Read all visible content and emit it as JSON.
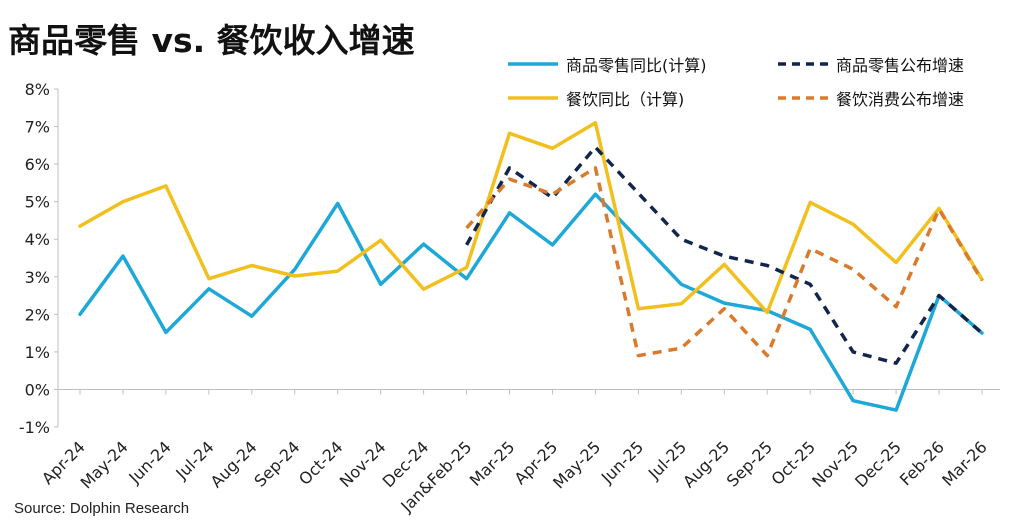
{
  "title": "商品零售 vs. 餐饮收入增速",
  "source": "Source: Dolphin Research",
  "chart_data": {
    "type": "line",
    "categories": [
      "Apr-24",
      "May-24",
      "Jun-24",
      "Jul-24",
      "Aug-24",
      "Sep-24",
      "Oct-24",
      "Nov-24",
      "Dec-24",
      "Jan&Feb-25",
      "Mar-25",
      "Apr-25",
      "May-25",
      "Jun-25",
      "Jul-25",
      "Aug-25",
      "Sep-25",
      "Oct-25",
      "Nov-25",
      "Dec-25",
      "Feb-26",
      "Mar-26"
    ],
    "ylim": [
      -1,
      8
    ],
    "yticks": [
      -1,
      0,
      1,
      2,
      3,
      4,
      5,
      6,
      7,
      8
    ],
    "ytick_labels": [
      "-1%",
      "0%",
      "1%",
      "2%",
      "3%",
      "4%",
      "5%",
      "6%",
      "7%",
      "8%"
    ],
    "series": [
      {
        "name": "商品零售同比(计算)",
        "color": "#1ea8d8",
        "dash": false,
        "values": [
          2.0,
          3.55,
          1.52,
          2.68,
          1.95,
          3.2,
          4.95,
          2.8,
          3.87,
          2.95,
          4.7,
          3.85,
          5.2,
          4.0,
          2.8,
          2.3,
          2.1,
          1.6,
          -0.3,
          -0.55,
          2.5,
          1.5
        ]
      },
      {
        "name": "餐饮同比（计算)",
        "color": "#f2c01e",
        "dash": false,
        "values": [
          4.35,
          5.0,
          5.42,
          2.95,
          3.3,
          3.02,
          3.15,
          3.97,
          2.67,
          3.25,
          6.82,
          6.42,
          7.1,
          2.15,
          2.28,
          3.33,
          2.05,
          4.98,
          4.4,
          3.38,
          4.82,
          2.93
        ]
      },
      {
        "name": "商品零售公布增速",
        "color": "#12264d",
        "dash": true,
        "values": [
          null,
          null,
          null,
          null,
          null,
          null,
          null,
          null,
          null,
          3.85,
          5.9,
          5.1,
          6.45,
          null,
          4.0,
          3.55,
          3.3,
          2.8,
          1.0,
          0.7,
          2.5,
          1.5
        ]
      },
      {
        "name": "餐饮消费公布增速",
        "color": "#d97a2c",
        "dash": true,
        "values": [
          null,
          null,
          null,
          null,
          null,
          null,
          null,
          null,
          null,
          4.3,
          5.6,
          5.2,
          5.9,
          0.9,
          1.1,
          2.15,
          0.9,
          3.75,
          3.2,
          2.2,
          4.8,
          2.9
        ]
      }
    ],
    "legend": "top-right",
    "grid": false
  }
}
